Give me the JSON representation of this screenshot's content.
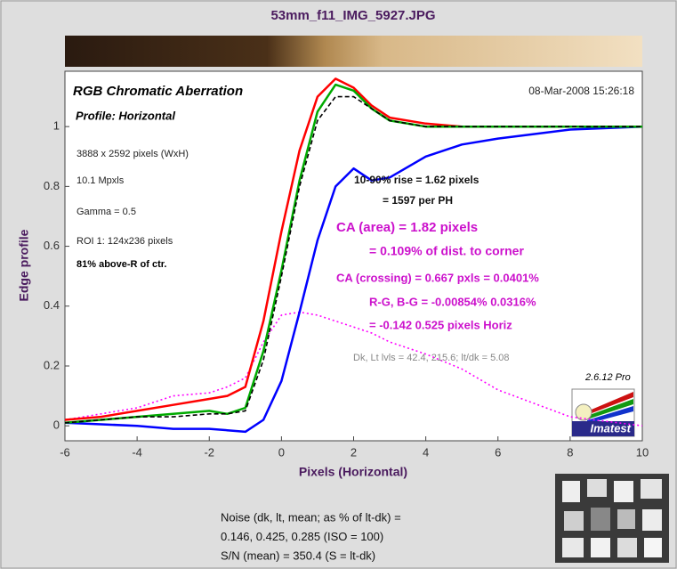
{
  "chart_data": {
    "type": "line",
    "title": "53mm_f11_IMG_5927.JPG",
    "xlabel": "Pixels (Horizontal)",
    "ylabel": "Edge profile",
    "x": [
      -6,
      -5,
      -4,
      -3,
      -2,
      -1.5,
      -1,
      -0.5,
      0,
      0.5,
      1,
      1.5,
      2,
      2.5,
      3,
      4,
      5,
      6,
      8,
      10
    ],
    "series": [
      {
        "color": "#ff00ff",
        "style": "dotted",
        "values": [
          0.02,
          0.04,
          0.06,
          0.1,
          0.11,
          0.13,
          0.16,
          0.28,
          0.37,
          0.38,
          0.37,
          0.35,
          0.33,
          0.31,
          0.28,
          0.24,
          0.19,
          0.12,
          0.03,
          0.0
        ]
      },
      {
        "color": "#0000ff",
        "style": "solid",
        "values": [
          0.01,
          0.005,
          0.0,
          -0.01,
          -0.01,
          -0.015,
          -0.02,
          0.02,
          0.15,
          0.38,
          0.62,
          0.8,
          0.86,
          0.82,
          0.83,
          0.9,
          0.94,
          0.96,
          0.99,
          1.0
        ]
      },
      {
        "color": "#ff0000",
        "style": "solid",
        "values": [
          0.02,
          0.03,
          0.05,
          0.07,
          0.09,
          0.1,
          0.13,
          0.35,
          0.65,
          0.92,
          1.1,
          1.16,
          1.13,
          1.07,
          1.03,
          1.01,
          1.0,
          1.0,
          1.0,
          1.0
        ]
      },
      {
        "color": "#00aa00",
        "style": "solid",
        "values": [
          0.01,
          0.02,
          0.03,
          0.04,
          0.05,
          0.04,
          0.06,
          0.25,
          0.52,
          0.82,
          1.05,
          1.14,
          1.12,
          1.06,
          1.02,
          1.0,
          1.0,
          1.0,
          1.0,
          1.0
        ]
      },
      {
        "color": "#000000",
        "style": "dashed",
        "values": [
          0.01,
          0.02,
          0.03,
          0.03,
          0.04,
          0.04,
          0.05,
          0.22,
          0.5,
          0.8,
          1.02,
          1.1,
          1.1,
          1.06,
          1.02,
          1.0,
          1.0,
          1.0,
          1.0,
          1.0
        ]
      }
    ],
    "xlim": [
      -6,
      10
    ],
    "ylim": [
      -0.05,
      1.185
    ],
    "xticks": [
      -6,
      -4,
      -2,
      0,
      2,
      4,
      6,
      8,
      10
    ],
    "yticks": [
      0,
      0.2,
      0.4,
      0.6,
      0.8,
      1
    ],
    "grid": false,
    "annotations": [
      "RGB Chromatic Aberration",
      "08-Mar-2008 15:26:18",
      "Profile: Horizontal",
      "3888 x 2592 pixels (WxH)",
      "10.1 Mpxls",
      "Gamma = 0.5",
      "ROI 1: 124x236 pixels",
      "81% above-R of ctr.",
      "10-90% rise = 1.62 pixels",
      "= 1597 per PH",
      "CA (area) = 1.82 pixels",
      "= 0.109% of dist. to corner",
      "CA (crossing) = 0.667 pxls = 0.0401%",
      "R-G, B-G = -0.00854%  0.0316%",
      "= -0.142  0.525 pixels Horiz",
      "Dk, Lt lvls = 42.4, 215.6;  lt/dk = 5.08",
      "2.6.12  Pro"
    ],
    "logo": "Imatest",
    "footer": [
      "Noise (dk, lt, mean; as % of lt-dk) =",
      "0.146,  0.425,  0.285  (ISO =  100)",
      "S/N (mean) = 350.4  (S = lt-dk)"
    ]
  }
}
